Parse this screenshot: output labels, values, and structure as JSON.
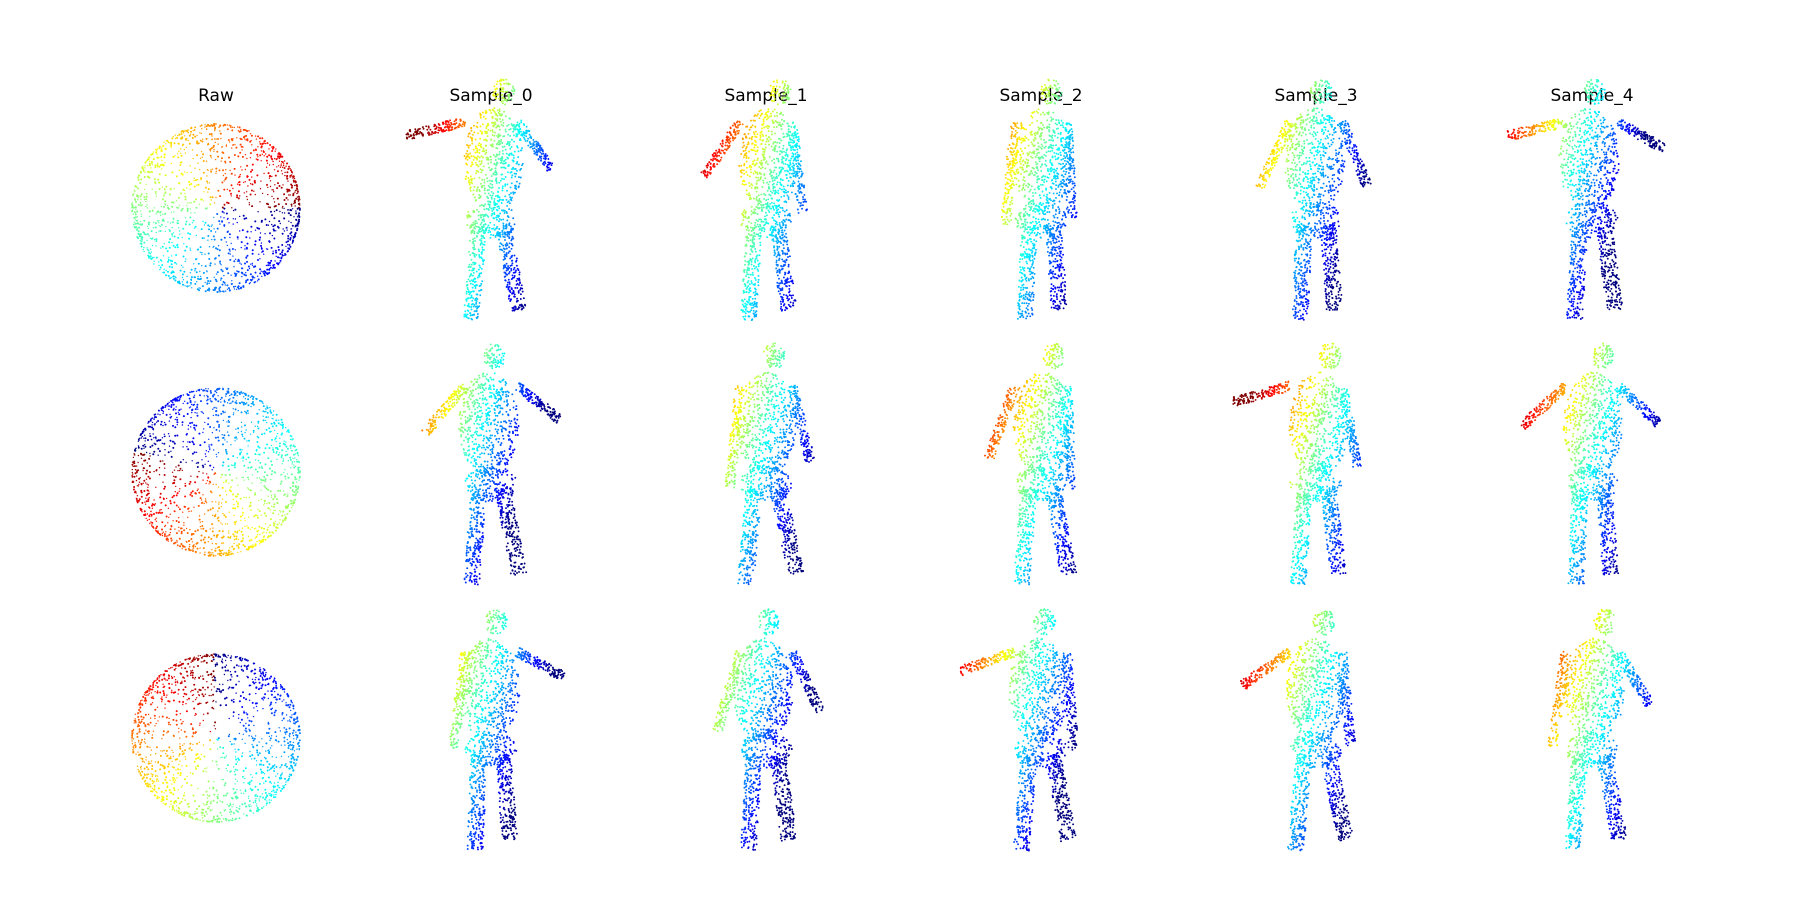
{
  "figure": {
    "columns": [
      {
        "title": "Raw",
        "kind": "sphere"
      },
      {
        "title": "Sample_0",
        "kind": "human"
      },
      {
        "title": "Sample_1",
        "kind": "human"
      },
      {
        "title": "Sample_2",
        "kind": "human"
      },
      {
        "title": "Sample_3",
        "kind": "human"
      },
      {
        "title": "Sample_4",
        "kind": "human"
      }
    ],
    "rows": 3,
    "colormap": [
      "#00007f",
      "#0000ff",
      "#007fff",
      "#00ffff",
      "#7fff7f",
      "#ffff00",
      "#ff7f00",
      "#ff0000",
      "#7f0000"
    ]
  }
}
